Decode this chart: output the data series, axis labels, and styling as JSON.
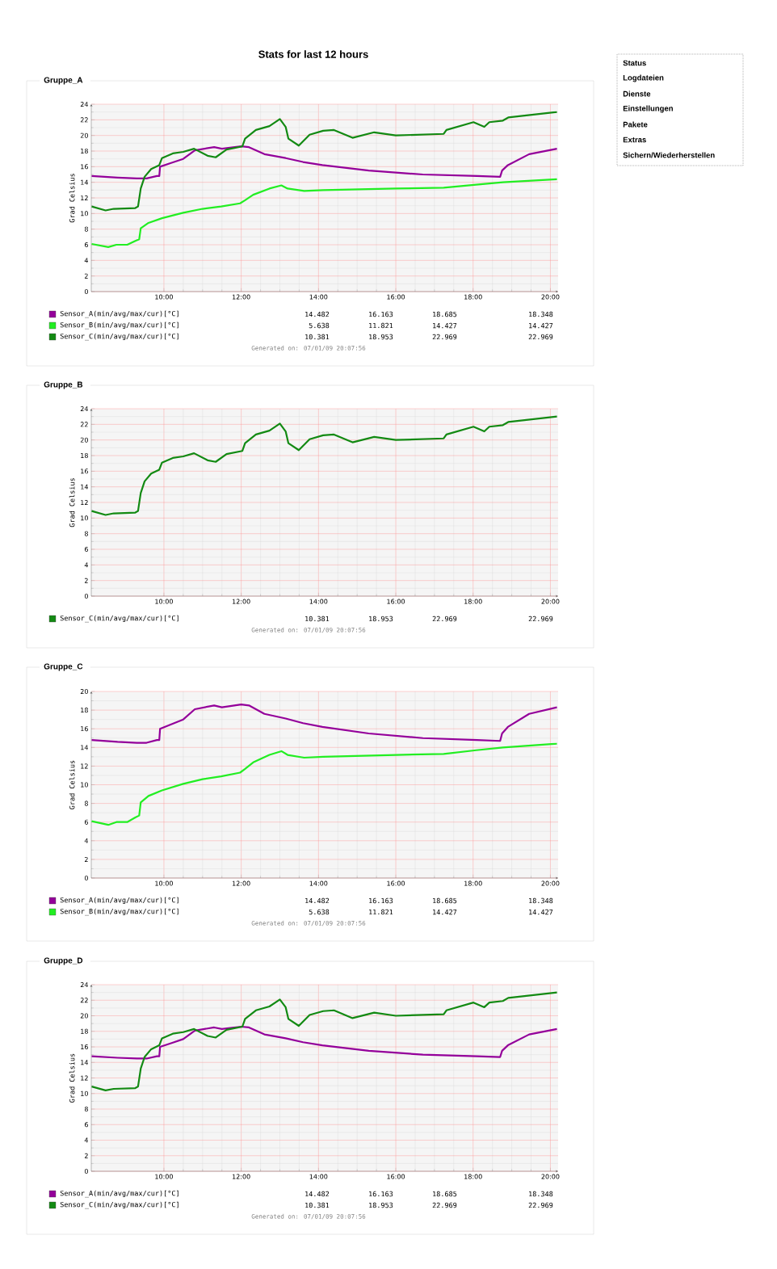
{
  "chart_data": [
    {
      "type": "other",
      "title": "Stats for last 12 hours",
      "annotations": [
        "Status",
        "Logdateien",
        "Dienste",
        "Einstellungen",
        "Pakete",
        "Extras",
        "Sichern/Wiederherstellen"
      ]
    },
    {
      "type": "line",
      "title": "Gruppe_A",
      "ylabel": "Grad Celsius",
      "xlim": [
        8.12,
        20.2
      ],
      "ylim": [
        0,
        24
      ],
      "xticks": [
        {
          "value": 10,
          "label": "10:00"
        },
        {
          "value": 12,
          "label": "12:00"
        },
        {
          "value": 14,
          "label": "14:00"
        },
        {
          "value": 16,
          "label": "16:00"
        },
        {
          "value": 18,
          "label": "18:00"
        },
        {
          "value": 20,
          "label": "20:00"
        }
      ],
      "yticks": [
        0,
        2,
        4,
        6,
        8,
        10,
        12,
        14,
        16,
        18,
        20,
        22,
        24
      ],
      "grid": true,
      "legend": "bottom",
      "series": [
        {
          "name": "Sensor_A(min/avg/max/cur)[°C]",
          "color": "#94009a",
          "x": [
            8.13,
            8.8,
            9.3,
            9.55,
            9.82,
            9.88,
            9.9,
            10.2,
            10.5,
            10.8,
            11.3,
            11.5,
            12.0,
            12.2,
            12.6,
            13.15,
            13.6,
            14.1,
            15.3,
            16.7,
            18.1,
            18.7,
            18.75,
            18.9,
            19.45,
            20.17
          ],
          "values": [
            14.8,
            14.6,
            14.5,
            14.5,
            14.8,
            14.8,
            16.0,
            16.5,
            17.0,
            18.1,
            18.5,
            18.3,
            18.6,
            18.5,
            17.6,
            17.1,
            16.6,
            16.2,
            15.5,
            15.0,
            14.8,
            14.7,
            15.5,
            16.2,
            17.6,
            18.3
          ]
        },
        {
          "name": "Sensor_B(min/avg/max/cur)[°C]",
          "color": "#22ee22",
          "x": [
            8.13,
            8.56,
            8.77,
            9.05,
            9.26,
            9.36,
            9.4,
            9.6,
            9.95,
            10.5,
            11.0,
            11.48,
            11.97,
            12.1,
            12.31,
            12.73,
            13.04,
            13.2,
            13.63,
            14.12,
            16.0,
            17.24,
            18.08,
            18.77,
            20.17
          ],
          "values": [
            6.1,
            5.7,
            6.0,
            6.0,
            6.5,
            6.7,
            8.1,
            8.8,
            9.4,
            10.1,
            10.6,
            10.9,
            11.3,
            11.7,
            12.4,
            13.2,
            13.6,
            13.2,
            12.9,
            13.0,
            13.2,
            13.3,
            13.7,
            14.0,
            14.4
          ]
        },
        {
          "name": "Sensor_C(min/avg/max/cur)[°C]",
          "color": "#138a13",
          "x": [
            8.13,
            8.49,
            8.7,
            9.26,
            9.33,
            9.4,
            9.5,
            9.67,
            9.88,
            9.95,
            10.23,
            10.5,
            10.78,
            11.13,
            11.34,
            11.62,
            12.03,
            12.1,
            12.38,
            12.73,
            13.0,
            13.15,
            13.22,
            13.49,
            13.77,
            14.12,
            14.4,
            14.88,
            15.44,
            16.0,
            17.24,
            17.31,
            18.01,
            18.29,
            18.42,
            18.77,
            18.91,
            20.17
          ],
          "values": [
            10.9,
            10.4,
            10.6,
            10.7,
            10.9,
            13.2,
            14.7,
            15.7,
            16.2,
            17.1,
            17.7,
            17.9,
            18.3,
            17.4,
            17.2,
            18.2,
            18.6,
            19.6,
            20.7,
            21.2,
            22.1,
            21.1,
            19.6,
            18.7,
            20.1,
            20.6,
            20.7,
            19.7,
            20.4,
            20.0,
            20.2,
            20.7,
            21.7,
            21.1,
            21.7,
            21.9,
            22.3,
            23.0
          ]
        }
      ],
      "annotations": [
        "14.482",
        "16.163",
        "18.685",
        "18.348",
        "5.638",
        "11.821",
        "14.427",
        "14.427",
        "10.381",
        "18.953",
        "22.969",
        "22.969",
        "Generated on: 07/01/09 20:07:56"
      ]
    },
    {
      "type": "line",
      "title": "Gruppe_B",
      "ylabel": "Grad Celsius",
      "xlim": [
        8.12,
        20.2
      ],
      "ylim": [
        0,
        24
      ],
      "xticks": [
        {
          "value": 10,
          "label": "10:00"
        },
        {
          "value": 12,
          "label": "12:00"
        },
        {
          "value": 14,
          "label": "14:00"
        },
        {
          "value": 16,
          "label": "16:00"
        },
        {
          "value": 18,
          "label": "18:00"
        },
        {
          "value": 20,
          "label": "20:00"
        }
      ],
      "yticks": [
        0,
        2,
        4,
        6,
        8,
        10,
        12,
        14,
        16,
        18,
        20,
        22,
        24
      ],
      "grid": true,
      "legend": "bottom",
      "series": [
        {
          "name": "Sensor_C(min/avg/max/cur)[°C]",
          "color": "#138a13",
          "x": [
            8.13,
            8.49,
            8.7,
            9.26,
            9.33,
            9.4,
            9.5,
            9.67,
            9.88,
            9.95,
            10.23,
            10.5,
            10.78,
            11.13,
            11.34,
            11.62,
            12.03,
            12.1,
            12.38,
            12.73,
            13.0,
            13.15,
            13.22,
            13.49,
            13.77,
            14.12,
            14.4,
            14.88,
            15.44,
            16.0,
            17.24,
            17.31,
            18.01,
            18.29,
            18.42,
            18.77,
            18.91,
            20.17
          ],
          "values": [
            10.9,
            10.4,
            10.6,
            10.7,
            10.9,
            13.2,
            14.7,
            15.7,
            16.2,
            17.1,
            17.7,
            17.9,
            18.3,
            17.4,
            17.2,
            18.2,
            18.6,
            19.6,
            20.7,
            21.2,
            22.1,
            21.1,
            19.6,
            18.7,
            20.1,
            20.6,
            20.7,
            19.7,
            20.4,
            20.0,
            20.2,
            20.7,
            21.7,
            21.1,
            21.7,
            21.9,
            22.3,
            23.0
          ]
        }
      ],
      "annotations": [
        "10.381",
        "18.953",
        "22.969",
        "22.969",
        "Generated on: 07/01/09 20:07:56"
      ]
    },
    {
      "type": "line",
      "title": "Gruppe_C",
      "ylabel": "Grad Celsius",
      "xlim": [
        8.12,
        20.2
      ],
      "ylim": [
        0,
        20
      ],
      "xticks": [
        {
          "value": 10,
          "label": "10:00"
        },
        {
          "value": 12,
          "label": "12:00"
        },
        {
          "value": 14,
          "label": "14:00"
        },
        {
          "value": 16,
          "label": "16:00"
        },
        {
          "value": 18,
          "label": "18:00"
        },
        {
          "value": 20,
          "label": "20:00"
        }
      ],
      "yticks": [
        0,
        2,
        4,
        6,
        8,
        10,
        12,
        14,
        16,
        18,
        20
      ],
      "grid": true,
      "legend": "bottom",
      "series": [
        {
          "name": "Sensor_A(min/avg/max/cur)[°C]",
          "color": "#94009a",
          "x": [
            8.13,
            8.8,
            9.3,
            9.55,
            9.82,
            9.88,
            9.9,
            10.2,
            10.5,
            10.8,
            11.3,
            11.5,
            12.0,
            12.2,
            12.6,
            13.15,
            13.6,
            14.1,
            15.3,
            16.7,
            18.1,
            18.7,
            18.75,
            18.9,
            19.45,
            20.17
          ],
          "values": [
            14.8,
            14.6,
            14.5,
            14.5,
            14.8,
            14.8,
            16.0,
            16.5,
            17.0,
            18.1,
            18.5,
            18.3,
            18.6,
            18.5,
            17.6,
            17.1,
            16.6,
            16.2,
            15.5,
            15.0,
            14.8,
            14.7,
            15.5,
            16.2,
            17.6,
            18.3
          ]
        },
        {
          "name": "Sensor_B(min/avg/max/cur)[°C]",
          "color": "#22ee22",
          "x": [
            8.13,
            8.56,
            8.77,
            9.05,
            9.26,
            9.36,
            9.4,
            9.6,
            9.95,
            10.5,
            11.0,
            11.48,
            11.97,
            12.1,
            12.31,
            12.73,
            13.04,
            13.2,
            13.63,
            14.12,
            16.0,
            17.24,
            18.08,
            18.77,
            20.17
          ],
          "values": [
            6.1,
            5.7,
            6.0,
            6.0,
            6.5,
            6.7,
            8.1,
            8.8,
            9.4,
            10.1,
            10.6,
            10.9,
            11.3,
            11.7,
            12.4,
            13.2,
            13.6,
            13.2,
            12.9,
            13.0,
            13.2,
            13.3,
            13.7,
            14.0,
            14.4
          ]
        }
      ],
      "annotations": [
        "14.482",
        "16.163",
        "18.685",
        "18.348",
        "5.638",
        "11.821",
        "14.427",
        "14.427",
        "Generated on: 07/01/09 20:07:56"
      ]
    },
    {
      "type": "line",
      "title": "Gruppe_D",
      "ylabel": "Grad Celsius",
      "xlim": [
        8.12,
        20.2
      ],
      "ylim": [
        0,
        24
      ],
      "xticks": [
        {
          "value": 10,
          "label": "10:00"
        },
        {
          "value": 12,
          "label": "12:00"
        },
        {
          "value": 14,
          "label": "14:00"
        },
        {
          "value": 16,
          "label": "16:00"
        },
        {
          "value": 18,
          "label": "18:00"
        },
        {
          "value": 20,
          "label": "20:00"
        }
      ],
      "yticks": [
        0,
        2,
        4,
        6,
        8,
        10,
        12,
        14,
        16,
        18,
        20,
        22,
        24
      ],
      "grid": true,
      "legend": "bottom",
      "series": [
        {
          "name": "Sensor_A(min/avg/max/cur)[°C]",
          "color": "#94009a",
          "x": [
            8.13,
            8.8,
            9.3,
            9.55,
            9.82,
            9.88,
            9.9,
            10.2,
            10.5,
            10.8,
            11.3,
            11.5,
            12.0,
            12.2,
            12.6,
            13.15,
            13.6,
            14.1,
            15.3,
            16.7,
            18.1,
            18.7,
            18.75,
            18.9,
            19.45,
            20.17
          ],
          "values": [
            14.8,
            14.6,
            14.5,
            14.5,
            14.8,
            14.8,
            16.0,
            16.5,
            17.0,
            18.1,
            18.5,
            18.3,
            18.6,
            18.5,
            17.6,
            17.1,
            16.6,
            16.2,
            15.5,
            15.0,
            14.8,
            14.7,
            15.5,
            16.2,
            17.6,
            18.3
          ]
        },
        {
          "name": "Sensor_C(min/avg/max/cur)[°C]",
          "color": "#138a13",
          "x": [
            8.13,
            8.49,
            8.7,
            9.26,
            9.33,
            9.4,
            9.5,
            9.67,
            9.88,
            9.95,
            10.23,
            10.5,
            10.78,
            11.13,
            11.34,
            11.62,
            12.03,
            12.1,
            12.38,
            12.73,
            13.0,
            13.15,
            13.22,
            13.49,
            13.77,
            14.12,
            14.4,
            14.88,
            15.44,
            16.0,
            17.24,
            17.31,
            18.01,
            18.29,
            18.42,
            18.77,
            18.91,
            20.17
          ],
          "values": [
            10.9,
            10.4,
            10.6,
            10.7,
            10.9,
            13.2,
            14.7,
            15.7,
            16.2,
            17.1,
            17.7,
            17.9,
            18.3,
            17.4,
            17.2,
            18.2,
            18.6,
            19.6,
            20.7,
            21.2,
            22.1,
            21.1,
            19.6,
            18.7,
            20.1,
            20.6,
            20.7,
            19.7,
            20.4,
            20.0,
            20.2,
            20.7,
            21.7,
            21.1,
            21.7,
            21.9,
            22.3,
            23.0
          ]
        }
      ],
      "annotations": [
        "14.482",
        "16.163",
        "18.685",
        "18.348",
        "10.381",
        "18.953",
        "22.969",
        "22.969",
        "Generated on: 07/01/09 20:07:56"
      ]
    }
  ]
}
